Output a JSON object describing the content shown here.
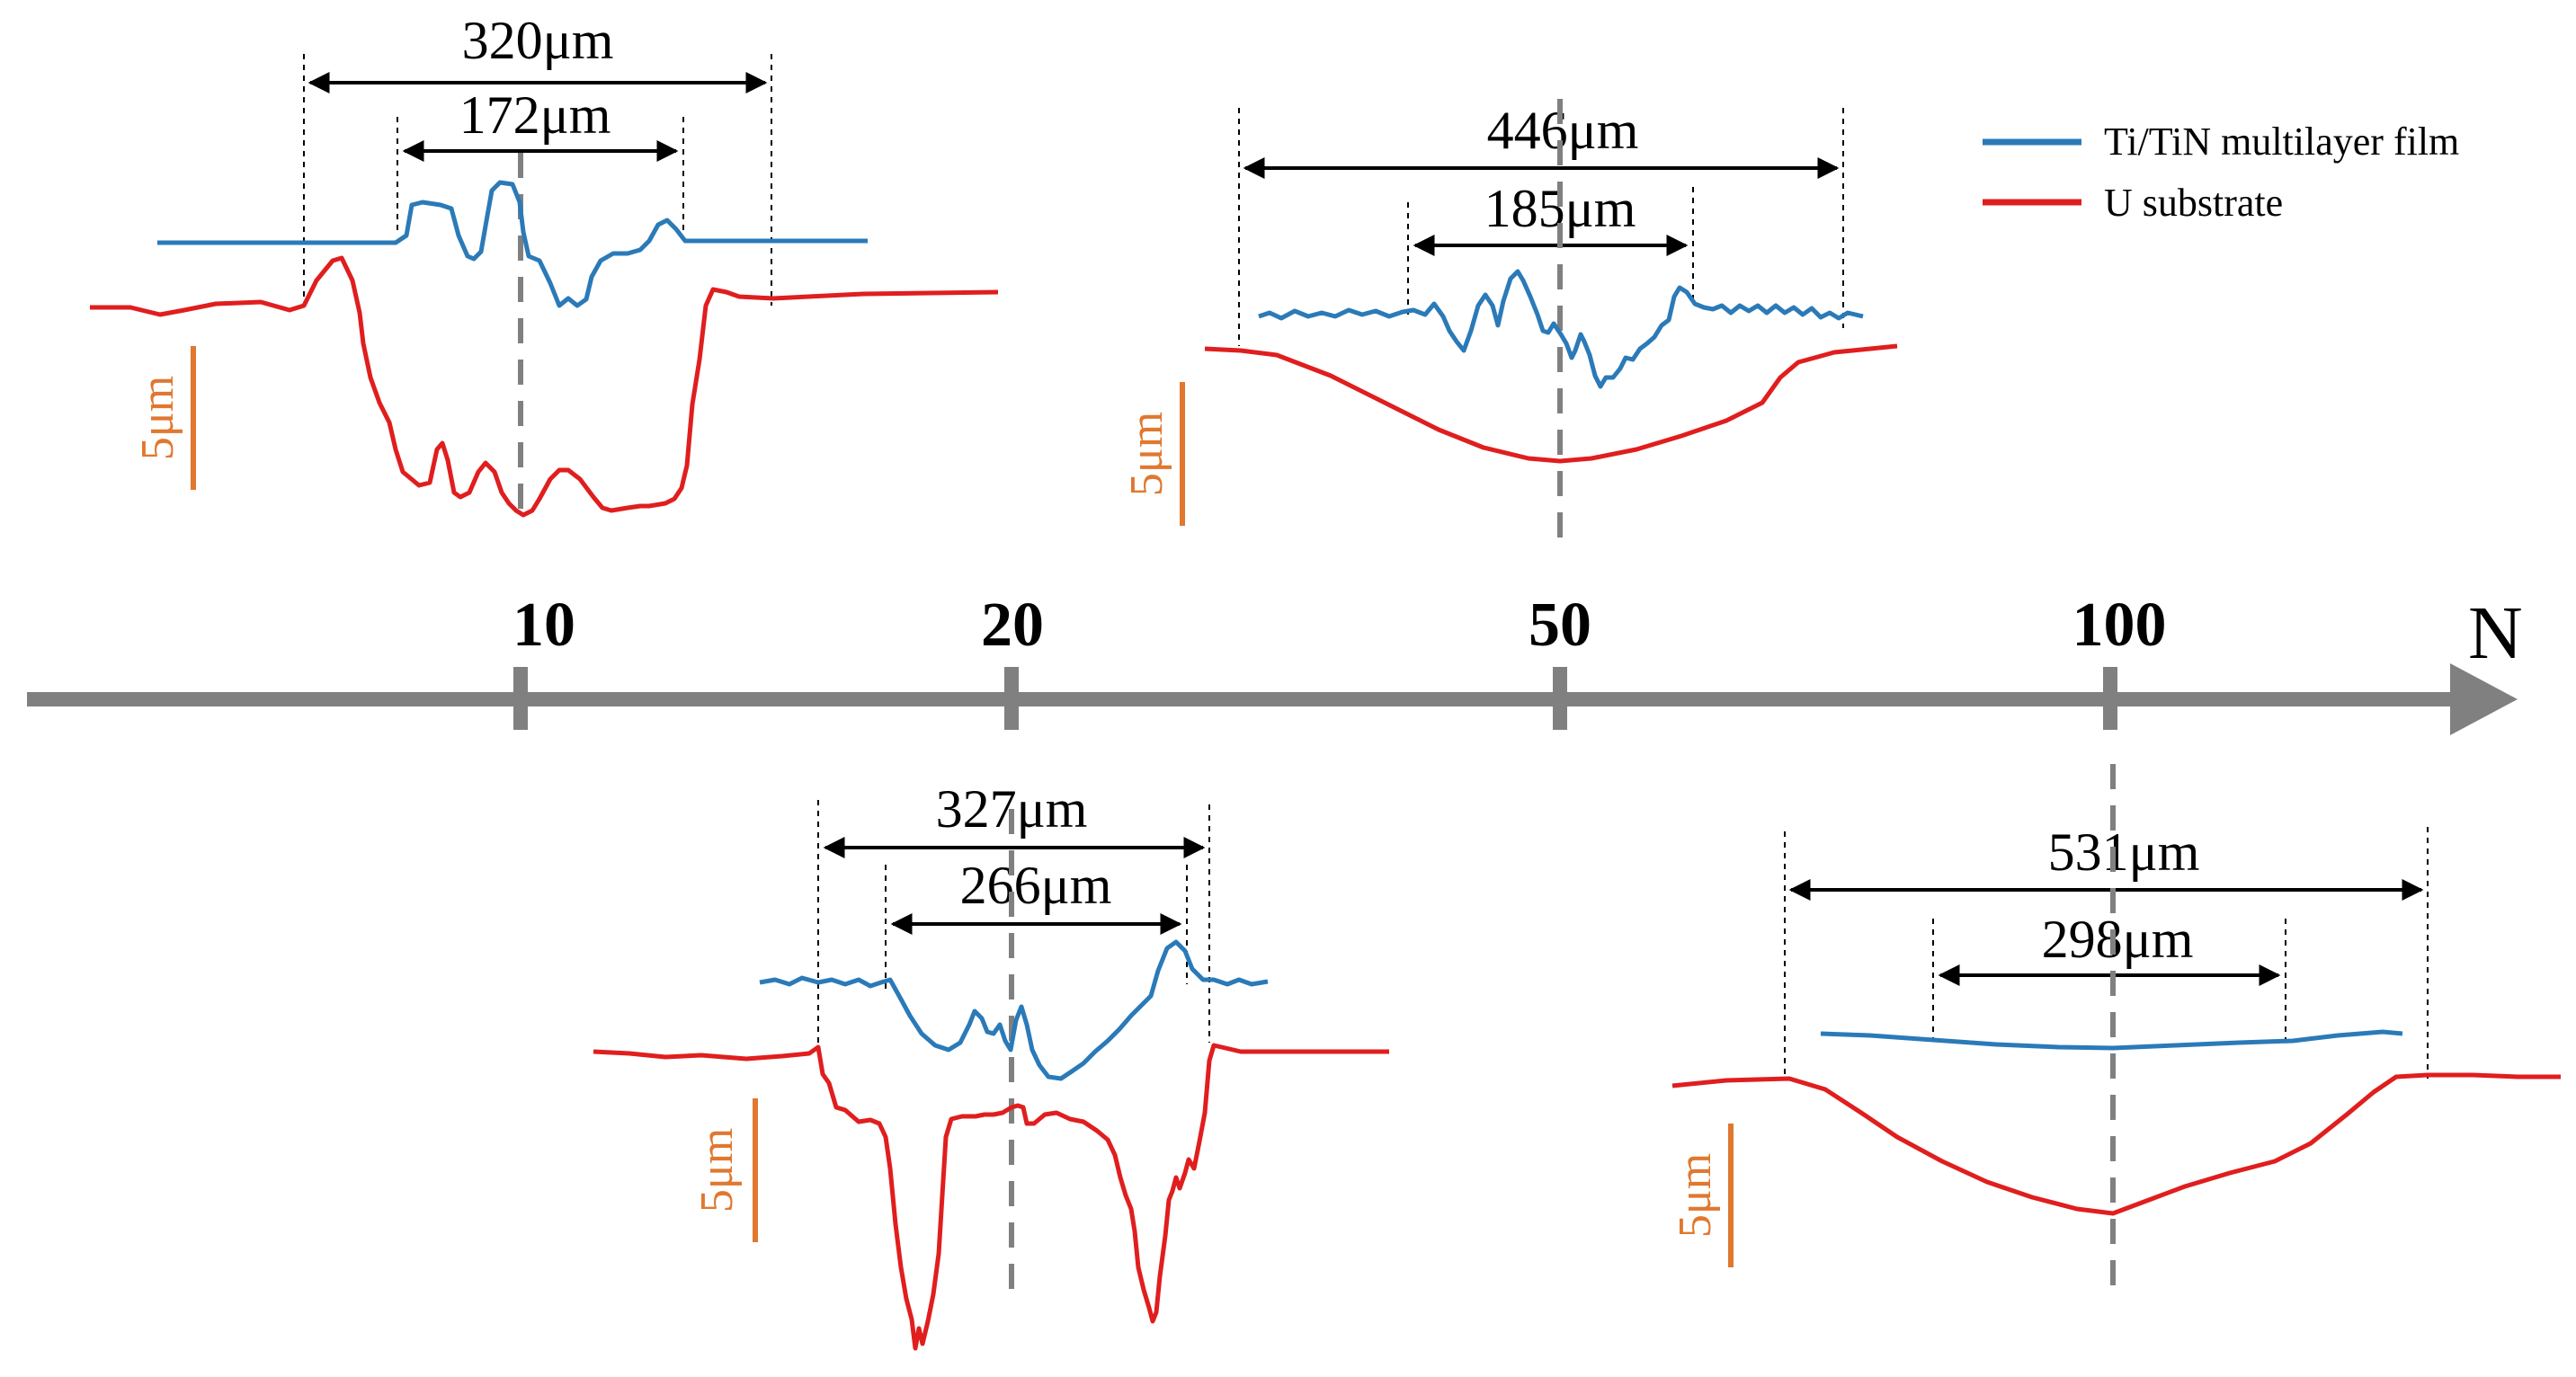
{
  "axis": {
    "name": "N",
    "ticks": [
      {
        "label": "10"
      },
      {
        "label": "20"
      },
      {
        "label": "50"
      },
      {
        "label": "100"
      }
    ],
    "color": "#808080"
  },
  "legend": {
    "items": [
      {
        "label": "Ti/TiN multilayer film",
        "color": "#2b7ab8"
      },
      {
        "label": "U substrate",
        "color": "#e01e1e"
      }
    ]
  },
  "scale_bar": {
    "label": "5μm",
    "color": "#e07830"
  },
  "panels": [
    {
      "id": "n10",
      "outer_width": "320μm",
      "inner_width": "172μm"
    },
    {
      "id": "n20",
      "outer_width": "327μm",
      "inner_width": "266μm"
    },
    {
      "id": "n50",
      "outer_width": "446μm",
      "inner_width": "185μm"
    },
    {
      "id": "n100",
      "outer_width": "531μm",
      "inner_width": "298μm"
    }
  ]
}
